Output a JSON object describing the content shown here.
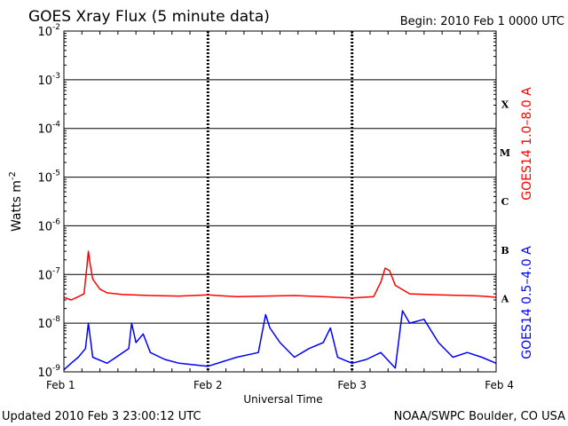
{
  "header": {
    "title": "GOES Xray Flux (5 minute data)",
    "begin": "Begin:  2010 Feb 1 0000 UTC"
  },
  "footer": {
    "updated": "Updated 2010 Feb  3 23:00:12 UTC",
    "source": "NOAA/SWPC Boulder, CO USA"
  },
  "chart_data": {
    "type": "line",
    "title": "GOES Xray Flux (5 minute data)",
    "xlabel": "Universal Time",
    "ylabel_base": "Watts m",
    "ylabel_sup": "-2",
    "yscale": "log",
    "ylim": [
      1e-09,
      0.01
    ],
    "xlim_days": [
      0,
      3
    ],
    "grid": true,
    "x_ticks": [
      {
        "day": 0,
        "label": "Feb 1"
      },
      {
        "day": 1,
        "label": "Feb 2"
      },
      {
        "day": 2,
        "label": "Feb 3"
      },
      {
        "day": 3,
        "label": "Feb 4"
      }
    ],
    "y_ticks": [
      {
        "exp": -2,
        "base": "10",
        "sup": "-2"
      },
      {
        "exp": -3,
        "base": "10",
        "sup": "-3"
      },
      {
        "exp": -4,
        "base": "10",
        "sup": "-4"
      },
      {
        "exp": -5,
        "base": "10",
        "sup": "-5"
      },
      {
        "exp": -6,
        "base": "10",
        "sup": "-6"
      },
      {
        "exp": -7,
        "base": "10",
        "sup": "-7"
      },
      {
        "exp": -8,
        "base": "10",
        "sup": "-8"
      },
      {
        "exp": -9,
        "base": "10",
        "sup": "-9"
      }
    ],
    "flare_classes": [
      {
        "label": "X",
        "exp": -4
      },
      {
        "label": "M",
        "exp": -5
      },
      {
        "label": "C",
        "exp": -6
      },
      {
        "label": "B",
        "exp": -7
      },
      {
        "label": "A",
        "exp": -8
      }
    ],
    "series": [
      {
        "name": "GOES14 1.0–8.0 A",
        "color": "#ff0000",
        "points": [
          [
            0.0,
            3.4e-08
          ],
          [
            0.05,
            3e-08
          ],
          [
            0.1,
            3.5e-08
          ],
          [
            0.14,
            4e-08
          ],
          [
            0.16,
            1.5e-07
          ],
          [
            0.17,
            3e-07
          ],
          [
            0.18,
            1.8e-07
          ],
          [
            0.2,
            8e-08
          ],
          [
            0.25,
            5e-08
          ],
          [
            0.3,
            4.2e-08
          ],
          [
            0.4,
            3.9e-08
          ],
          [
            0.6,
            3.7e-08
          ],
          [
            0.8,
            3.6e-08
          ],
          [
            1.0,
            3.8e-08
          ],
          [
            1.2,
            3.5e-08
          ],
          [
            1.4,
            3.6e-08
          ],
          [
            1.6,
            3.7e-08
          ],
          [
            1.8,
            3.5e-08
          ],
          [
            2.0,
            3.3e-08
          ],
          [
            2.15,
            3.5e-08
          ],
          [
            2.2,
            7e-08
          ],
          [
            2.23,
            1.35e-07
          ],
          [
            2.26,
            1.2e-07
          ],
          [
            2.3,
            6e-08
          ],
          [
            2.4,
            4e-08
          ],
          [
            2.6,
            3.8e-08
          ],
          [
            2.8,
            3.7e-08
          ],
          [
            2.9,
            3.6e-08
          ],
          [
            3.0,
            3.4e-08
          ]
        ]
      },
      {
        "name": "GOES14 0.5–4.0 A",
        "color": "#0000ff",
        "points": [
          [
            0.0,
            1.1e-09
          ],
          [
            0.05,
            1.5e-09
          ],
          [
            0.1,
            2e-09
          ],
          [
            0.15,
            3e-09
          ],
          [
            0.17,
            1e-08
          ],
          [
            0.2,
            2e-09
          ],
          [
            0.3,
            1.5e-09
          ],
          [
            0.45,
            3e-09
          ],
          [
            0.47,
            1e-08
          ],
          [
            0.5,
            4e-09
          ],
          [
            0.55,
            6e-09
          ],
          [
            0.6,
            2.5e-09
          ],
          [
            0.7,
            1.8e-09
          ],
          [
            0.8,
            1.5e-09
          ],
          [
            1.0,
            1.3e-09
          ],
          [
            1.2,
            2e-09
          ],
          [
            1.35,
            2.5e-09
          ],
          [
            1.4,
            1.5e-08
          ],
          [
            1.43,
            8e-09
          ],
          [
            1.5,
            4e-09
          ],
          [
            1.6,
            2e-09
          ],
          [
            1.7,
            3e-09
          ],
          [
            1.8,
            4e-09
          ],
          [
            1.85,
            8e-09
          ],
          [
            1.9,
            2e-09
          ],
          [
            2.0,
            1.5e-09
          ],
          [
            2.1,
            1.8e-09
          ],
          [
            2.2,
            2.5e-09
          ],
          [
            2.3,
            1.2e-09
          ],
          [
            2.35,
            1.8e-08
          ],
          [
            2.4,
            1e-08
          ],
          [
            2.5,
            1.2e-08
          ],
          [
            2.6,
            4e-09
          ],
          [
            2.7,
            2e-09
          ],
          [
            2.8,
            2.5e-09
          ],
          [
            2.9,
            2e-09
          ],
          [
            3.0,
            1.5e-09
          ]
        ]
      }
    ]
  }
}
